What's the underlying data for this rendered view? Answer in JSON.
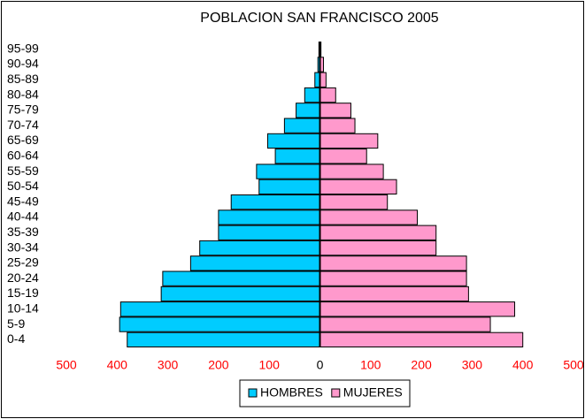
{
  "chart_data": {
    "type": "pyramid",
    "title": "POBLACION SAN FRANCISCO 2005",
    "categories": [
      "0-4",
      "5-9",
      "10-14",
      "15-19",
      "20-24",
      "25-29",
      "30-34",
      "35-39",
      "40-44",
      "45-49",
      "50-54",
      "55-59",
      "60-64",
      "65-69",
      "70-74",
      "75-79",
      "80-84",
      "85-89",
      "90-94",
      "95-99"
    ],
    "series": [
      {
        "name": "HOMBRES",
        "color": "#00ccff",
        "values": [
          -380,
          -395,
          -393,
          -313,
          -310,
          -255,
          -237,
          -200,
          -200,
          -175,
          -120,
          -125,
          -88,
          -103,
          -70,
          -47,
          -30,
          -10,
          -4,
          -2
        ]
      },
      {
        "name": "MUJERES",
        "color": "#ff99cc",
        "values": [
          400,
          336,
          384,
          293,
          289,
          289,
          229,
          229,
          192,
          133,
          151,
          125,
          92,
          114,
          69,
          61,
          31,
          12,
          7,
          2
        ]
      }
    ],
    "xlim": [
      -500,
      500
    ],
    "xticks": [
      {
        "value": -500,
        "label": "500"
      },
      {
        "value": -400,
        "label": "400"
      },
      {
        "value": -300,
        "label": "300"
      },
      {
        "value": -200,
        "label": "200"
      },
      {
        "value": -100,
        "label": "100"
      },
      0,
      100,
      200,
      300,
      400,
      500
    ],
    "legend": "bottom"
  }
}
